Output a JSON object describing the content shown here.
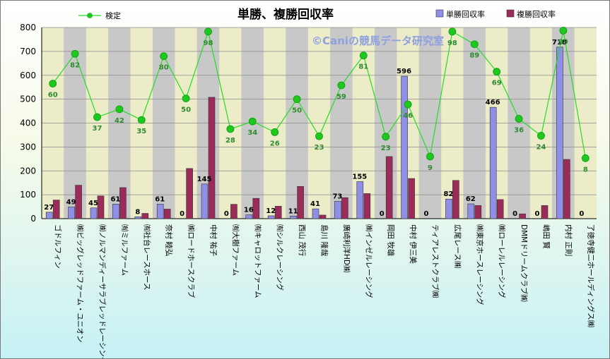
{
  "chart_data": {
    "type": "bar",
    "title": "単勝、複勝回収率",
    "watermark": "©Caniの競馬データ研究室",
    "ylim": [
      0,
      800
    ],
    "yticks": [
      0,
      100,
      200,
      300,
      400,
      500,
      600,
      700,
      800
    ],
    "grid": true,
    "legend_position": "top",
    "categories": [
      "ゴドルフィン",
      "㈱ビッグレッドファーム・ユニオン",
      "㈱ノルマンディーサラブレッドレーシング",
      "㈲ミルファーム",
      "㈲社台レースホース",
      "奈村 睦弘",
      "㈱ロードホースクラブ",
      "中村 祐子",
      "㈲大樹ファーム",
      "㈲キャロットファーム",
      "㈲シルクレーシング",
      "西山 茂行",
      "島川 隆哉",
      "廣崎利洋HD㈱",
      "㈱インゼルレーシング",
      "岡田 牧雄",
      "中村 伊三美",
      "ティアレストクラブ㈱",
      "広尾レース㈱",
      "㈱東京ホースレーシング",
      "㈱ローレルレーシング",
      "DMMドリームクラブ㈱",
      "嶋田 賢",
      "内村 正則",
      "了徳寺健二ホールディングス㈱"
    ],
    "series": [
      {
        "name": "単勝回収率",
        "type": "bar",
        "color": "#8f8fe8",
        "values": [
          27,
          49,
          45,
          61,
          8,
          61,
          0,
          145,
          0,
          16,
          12,
          11,
          41,
          73,
          155,
          0,
          596,
          0,
          82,
          62,
          466,
          0,
          0,
          718,
          0
        ]
      },
      {
        "name": "複勝回収率",
        "type": "bar",
        "color": "#9b2c5a",
        "values": [
          78,
          140,
          95,
          130,
          22,
          40,
          210,
          508,
          60,
          85,
          52,
          135,
          15,
          88,
          105,
          260,
          168,
          0,
          160,
          55,
          80,
          20,
          55,
          248,
          0
        ]
      },
      {
        "name": "検定",
        "type": "line",
        "color": "#22dd22",
        "values": [
          565,
          690,
          425,
          458,
          413,
          680,
          503,
          783,
          375,
          407,
          362,
          500,
          345,
          558,
          683,
          343,
          478,
          260,
          783,
          730,
          615,
          418,
          347,
          787,
          253
        ],
        "labels": [
          60,
          82,
          37,
          42,
          35,
          80,
          50,
          98,
          28,
          34,
          26,
          50,
          23,
          59,
          81,
          23,
          46,
          9,
          98,
          89,
          69,
          36,
          24,
          99,
          8
        ]
      }
    ]
  }
}
